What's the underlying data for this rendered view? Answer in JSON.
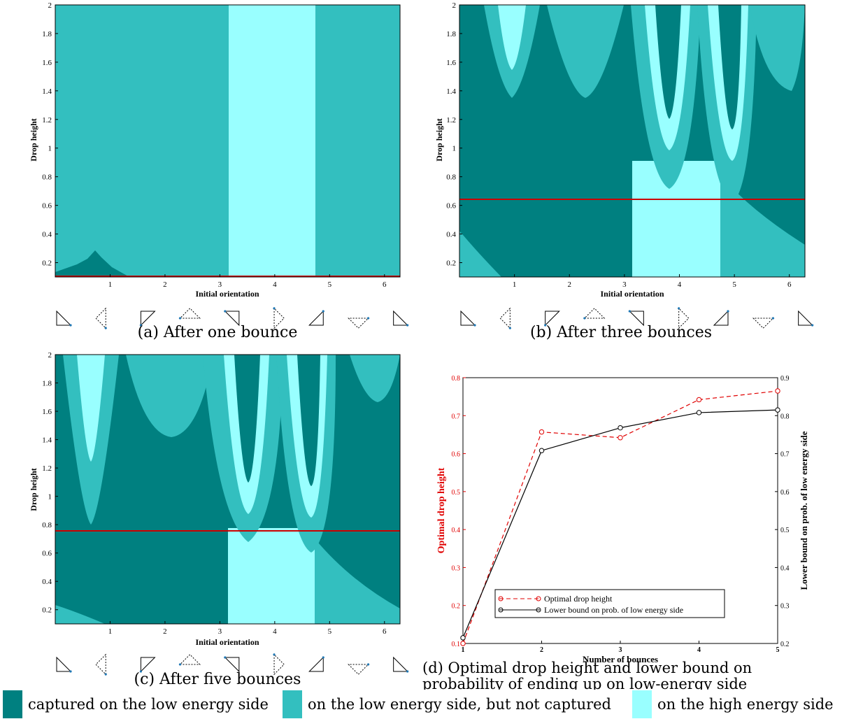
{
  "colors": {
    "captured_low": "#008080",
    "low_not_captured": "#33bfbf",
    "high": "#99ffff",
    "red_line": "#cc0000"
  },
  "shared_axes": {
    "xlabel": "Initial orientation",
    "ylabel": "Drop height",
    "xticks": [
      "1",
      "2",
      "3",
      "4",
      "5",
      "6"
    ],
    "yticks": [
      "0.2",
      "0.4",
      "0.6",
      "0.8",
      "1",
      "1.2",
      "1.4",
      "1.6",
      "1.8",
      "2"
    ],
    "xlim": [
      0,
      6.2832
    ],
    "ylim": [
      0.1,
      2
    ]
  },
  "captions": {
    "a": "(a) After one bounce",
    "b": "(b) After three bounces",
    "c": "(c) After five bounces",
    "d_line1": "(d) Optimal drop height and lower bound on",
    "d_line2": "probability of ending up on low-energy side"
  },
  "legend": {
    "captured": "captured on the low energy side",
    "low": "on the low energy side, but not captured",
    "high": "on the high energy side"
  },
  "chart_data": [
    {
      "id": "a",
      "type": "heatmap",
      "xlabel": "Initial orientation",
      "ylabel": "Drop height",
      "xlim": [
        0,
        6.2832
      ],
      "ylim": [
        0.1,
        2
      ],
      "optimal_drop_height_line": 0.1,
      "regions": [
        {
          "class": "low_not_captured",
          "x": [
            0,
            3.14
          ]
        },
        {
          "class": "high",
          "x": [
            3.14,
            4.71
          ]
        },
        {
          "class": "low_not_captured",
          "x": [
            4.71,
            6.2832
          ]
        },
        {
          "class": "captured_low",
          "x": [
            0,
            1.35
          ],
          "y_peak": 0.28,
          "x_peak": 0.8
        }
      ]
    },
    {
      "id": "b",
      "type": "heatmap",
      "xlabel": "Initial orientation",
      "ylabel": "Drop height",
      "xlim": [
        0,
        6.2832
      ],
      "ylim": [
        0.1,
        2
      ],
      "optimal_drop_height_line": 0.64
    },
    {
      "id": "c",
      "type": "heatmap",
      "xlabel": "Initial orientation",
      "ylabel": "Drop height",
      "xlim": [
        0,
        6.2832
      ],
      "ylim": [
        0.1,
        2
      ],
      "optimal_drop_height_line": 0.76
    },
    {
      "id": "d",
      "type": "line",
      "xlabel": "Number of bounces",
      "ylabel_left": "Optimal drop height",
      "ylabel_right": "Lower bound on prob. of low energy side",
      "x": [
        1,
        2,
        3,
        4,
        5
      ],
      "xlim": [
        1,
        5
      ],
      "ylim_left": [
        0.1,
        0.8
      ],
      "ylim_right": [
        0.2,
        0.9
      ],
      "xticks": [
        "1",
        "2",
        "3",
        "4",
        "5"
      ],
      "yticks_left": [
        "0.1",
        "0.2",
        "0.3",
        "0.4",
        "0.5",
        "0.6",
        "0.7",
        "0.8"
      ],
      "yticks_right": [
        "0.2",
        "0.3",
        "0.4",
        "0.5",
        "0.6",
        "0.7",
        "0.8",
        "0.9"
      ],
      "series": [
        {
          "name": "Optimal drop height",
          "axis": "left",
          "color": "#e00000",
          "style": "dashed",
          "values": [
            0.1,
            0.657,
            0.642,
            0.742,
            0.765
          ]
        },
        {
          "name": "Lower bound on prob. of low energy side",
          "axis": "right",
          "color": "#000000",
          "style": "solid",
          "values": [
            0.215,
            0.708,
            0.768,
            0.808,
            0.815
          ]
        }
      ],
      "legend_position": "bottom"
    }
  ]
}
